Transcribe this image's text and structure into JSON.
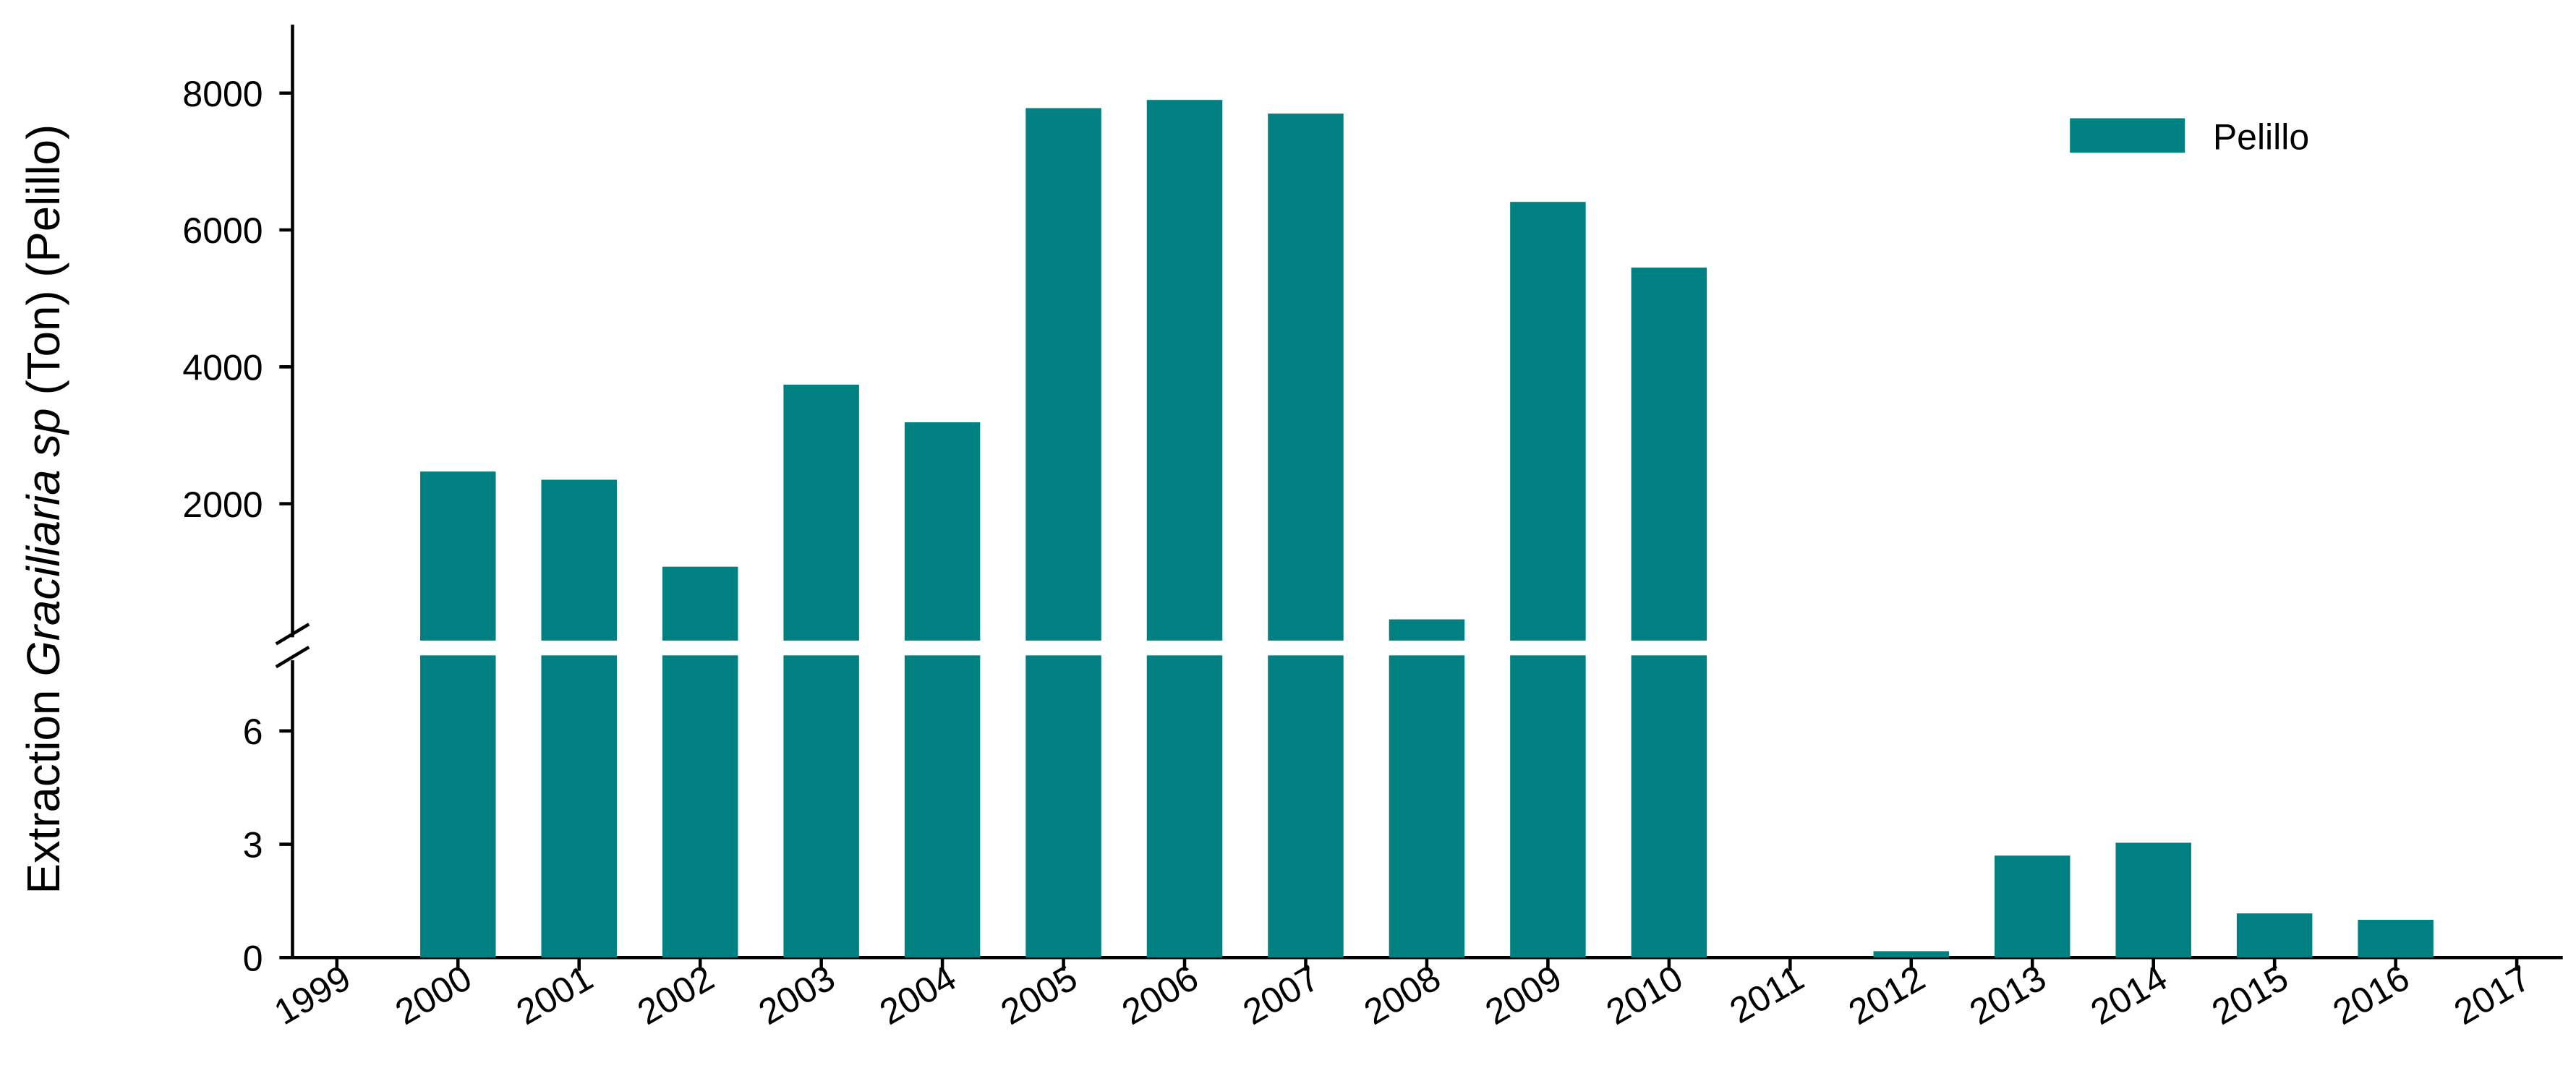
{
  "chart_data": {
    "type": "bar",
    "ylabel": [
      "Extraction",
      "Graciliaria sp",
      "(Ton) (Pelillo)"
    ],
    "categories": [
      "1999",
      "2000",
      "2001",
      "2002",
      "2003",
      "2004",
      "2005",
      "2006",
      "2007",
      "2008",
      "2009",
      "2010",
      "2011",
      "2012",
      "2013",
      "2014",
      "2015",
      "2016",
      "2017"
    ],
    "series": [
      {
        "name": "Pelillo",
        "color": "#008080",
        "values": [
          null,
          2470,
          2350,
          1080,
          3740,
          3190,
          7780,
          7900,
          7700,
          310,
          6410,
          5450,
          0,
          0.17,
          2.7,
          3.04,
          1.17,
          1.0,
          null
        ]
      }
    ],
    "ylim": [
      0,
      9000
    ],
    "yticks": [
      2000,
      4000,
      6000,
      8000
    ],
    "ylim_lower": [
      0,
      8
    ],
    "yticks_lower": [
      0,
      3,
      6
    ],
    "legend": "upper right"
  }
}
